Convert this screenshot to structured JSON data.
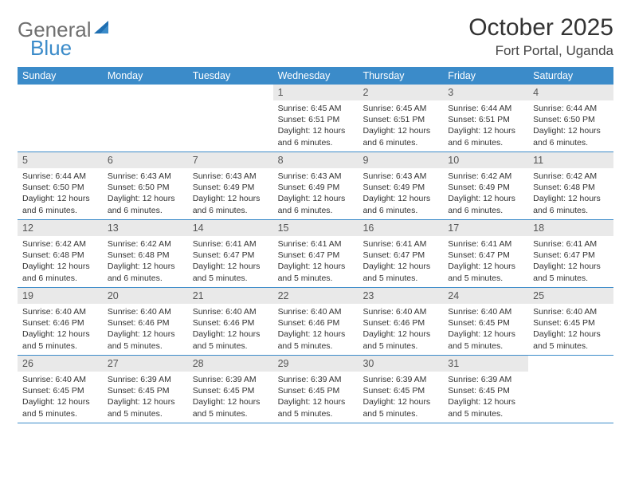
{
  "logo": {
    "part1": "General",
    "part2": "Blue",
    "accent_color": "#3b8bc9",
    "text_color": "#707070"
  },
  "title": "October 2025",
  "location": "Fort Portal, Uganda",
  "colors": {
    "header_bg": "#3b8bc9",
    "daynum_bg": "#e9e9e9",
    "border": "#3b8bc9",
    "page_bg": "#ffffff",
    "title_color": "#333333",
    "body_text": "#333333"
  },
  "fonts": {
    "title_size_pt": 22,
    "location_size_pt": 13,
    "dow_size_pt": 9,
    "day_size_pt": 8
  },
  "days_of_week": [
    "Sunday",
    "Monday",
    "Tuesday",
    "Wednesday",
    "Thursday",
    "Friday",
    "Saturday"
  ],
  "weeks": [
    [
      {
        "n": "",
        "sunrise": "",
        "sunset": "",
        "daylight": ""
      },
      {
        "n": "",
        "sunrise": "",
        "sunset": "",
        "daylight": ""
      },
      {
        "n": "",
        "sunrise": "",
        "sunset": "",
        "daylight": ""
      },
      {
        "n": "1",
        "sunrise": "Sunrise: 6:45 AM",
        "sunset": "Sunset: 6:51 PM",
        "daylight": "Daylight: 12 hours and 6 minutes."
      },
      {
        "n": "2",
        "sunrise": "Sunrise: 6:45 AM",
        "sunset": "Sunset: 6:51 PM",
        "daylight": "Daylight: 12 hours and 6 minutes."
      },
      {
        "n": "3",
        "sunrise": "Sunrise: 6:44 AM",
        "sunset": "Sunset: 6:51 PM",
        "daylight": "Daylight: 12 hours and 6 minutes."
      },
      {
        "n": "4",
        "sunrise": "Sunrise: 6:44 AM",
        "sunset": "Sunset: 6:50 PM",
        "daylight": "Daylight: 12 hours and 6 minutes."
      }
    ],
    [
      {
        "n": "5",
        "sunrise": "Sunrise: 6:44 AM",
        "sunset": "Sunset: 6:50 PM",
        "daylight": "Daylight: 12 hours and 6 minutes."
      },
      {
        "n": "6",
        "sunrise": "Sunrise: 6:43 AM",
        "sunset": "Sunset: 6:50 PM",
        "daylight": "Daylight: 12 hours and 6 minutes."
      },
      {
        "n": "7",
        "sunrise": "Sunrise: 6:43 AM",
        "sunset": "Sunset: 6:49 PM",
        "daylight": "Daylight: 12 hours and 6 minutes."
      },
      {
        "n": "8",
        "sunrise": "Sunrise: 6:43 AM",
        "sunset": "Sunset: 6:49 PM",
        "daylight": "Daylight: 12 hours and 6 minutes."
      },
      {
        "n": "9",
        "sunrise": "Sunrise: 6:43 AM",
        "sunset": "Sunset: 6:49 PM",
        "daylight": "Daylight: 12 hours and 6 minutes."
      },
      {
        "n": "10",
        "sunrise": "Sunrise: 6:42 AM",
        "sunset": "Sunset: 6:49 PM",
        "daylight": "Daylight: 12 hours and 6 minutes."
      },
      {
        "n": "11",
        "sunrise": "Sunrise: 6:42 AM",
        "sunset": "Sunset: 6:48 PM",
        "daylight": "Daylight: 12 hours and 6 minutes."
      }
    ],
    [
      {
        "n": "12",
        "sunrise": "Sunrise: 6:42 AM",
        "sunset": "Sunset: 6:48 PM",
        "daylight": "Daylight: 12 hours and 6 minutes."
      },
      {
        "n": "13",
        "sunrise": "Sunrise: 6:42 AM",
        "sunset": "Sunset: 6:48 PM",
        "daylight": "Daylight: 12 hours and 6 minutes."
      },
      {
        "n": "14",
        "sunrise": "Sunrise: 6:41 AM",
        "sunset": "Sunset: 6:47 PM",
        "daylight": "Daylight: 12 hours and 5 minutes."
      },
      {
        "n": "15",
        "sunrise": "Sunrise: 6:41 AM",
        "sunset": "Sunset: 6:47 PM",
        "daylight": "Daylight: 12 hours and 5 minutes."
      },
      {
        "n": "16",
        "sunrise": "Sunrise: 6:41 AM",
        "sunset": "Sunset: 6:47 PM",
        "daylight": "Daylight: 12 hours and 5 minutes."
      },
      {
        "n": "17",
        "sunrise": "Sunrise: 6:41 AM",
        "sunset": "Sunset: 6:47 PM",
        "daylight": "Daylight: 12 hours and 5 minutes."
      },
      {
        "n": "18",
        "sunrise": "Sunrise: 6:41 AM",
        "sunset": "Sunset: 6:47 PM",
        "daylight": "Daylight: 12 hours and 5 minutes."
      }
    ],
    [
      {
        "n": "19",
        "sunrise": "Sunrise: 6:40 AM",
        "sunset": "Sunset: 6:46 PM",
        "daylight": "Daylight: 12 hours and 5 minutes."
      },
      {
        "n": "20",
        "sunrise": "Sunrise: 6:40 AM",
        "sunset": "Sunset: 6:46 PM",
        "daylight": "Daylight: 12 hours and 5 minutes."
      },
      {
        "n": "21",
        "sunrise": "Sunrise: 6:40 AM",
        "sunset": "Sunset: 6:46 PM",
        "daylight": "Daylight: 12 hours and 5 minutes."
      },
      {
        "n": "22",
        "sunrise": "Sunrise: 6:40 AM",
        "sunset": "Sunset: 6:46 PM",
        "daylight": "Daylight: 12 hours and 5 minutes."
      },
      {
        "n": "23",
        "sunrise": "Sunrise: 6:40 AM",
        "sunset": "Sunset: 6:46 PM",
        "daylight": "Daylight: 12 hours and 5 minutes."
      },
      {
        "n": "24",
        "sunrise": "Sunrise: 6:40 AM",
        "sunset": "Sunset: 6:45 PM",
        "daylight": "Daylight: 12 hours and 5 minutes."
      },
      {
        "n": "25",
        "sunrise": "Sunrise: 6:40 AM",
        "sunset": "Sunset: 6:45 PM",
        "daylight": "Daylight: 12 hours and 5 minutes."
      }
    ],
    [
      {
        "n": "26",
        "sunrise": "Sunrise: 6:40 AM",
        "sunset": "Sunset: 6:45 PM",
        "daylight": "Daylight: 12 hours and 5 minutes."
      },
      {
        "n": "27",
        "sunrise": "Sunrise: 6:39 AM",
        "sunset": "Sunset: 6:45 PM",
        "daylight": "Daylight: 12 hours and 5 minutes."
      },
      {
        "n": "28",
        "sunrise": "Sunrise: 6:39 AM",
        "sunset": "Sunset: 6:45 PM",
        "daylight": "Daylight: 12 hours and 5 minutes."
      },
      {
        "n": "29",
        "sunrise": "Sunrise: 6:39 AM",
        "sunset": "Sunset: 6:45 PM",
        "daylight": "Daylight: 12 hours and 5 minutes."
      },
      {
        "n": "30",
        "sunrise": "Sunrise: 6:39 AM",
        "sunset": "Sunset: 6:45 PM",
        "daylight": "Daylight: 12 hours and 5 minutes."
      },
      {
        "n": "31",
        "sunrise": "Sunrise: 6:39 AM",
        "sunset": "Sunset: 6:45 PM",
        "daylight": "Daylight: 12 hours and 5 minutes."
      },
      {
        "n": "",
        "sunrise": "",
        "sunset": "",
        "daylight": ""
      }
    ]
  ]
}
